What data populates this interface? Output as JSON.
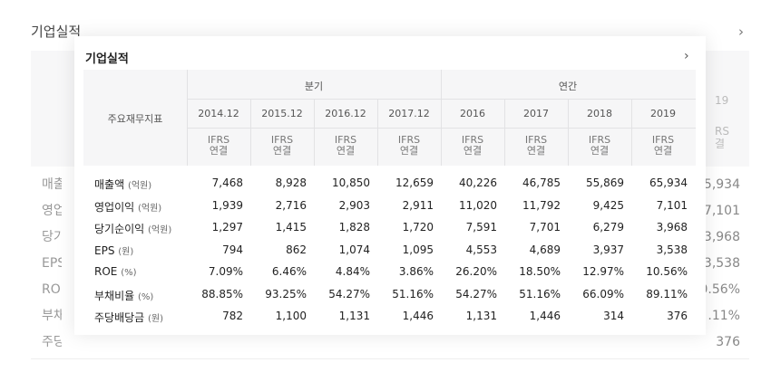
{
  "background": {
    "title": "기업실적",
    "right_year": "19",
    "right_ifrs": "RS",
    "right_yeongyeol": "결",
    "left_labels": [
      "매출",
      "영업",
      "당기",
      "EPS",
      "RO",
      "부채",
      "주당"
    ],
    "right_values": [
      "5,934",
      "7,101",
      "3,968",
      "3,538",
      "0.56%",
      ".11%",
      "376"
    ]
  },
  "popup": {
    "title": "기업실적",
    "row_header": "주요재무지표",
    "groups": [
      "분기",
      "연간"
    ],
    "periods": [
      "2014.12",
      "2015.12",
      "2016.12",
      "2017.12",
      "2016",
      "2017",
      "2018",
      "2019"
    ],
    "basis_top": "IFRS",
    "basis_bottom": "연결",
    "rows": [
      {
        "label": "매출액",
        "unit": "(억원)",
        "values": [
          "7,468",
          "8,928",
          "10,850",
          "12,659",
          "40,226",
          "46,785",
          "55,869",
          "65,934"
        ]
      },
      {
        "label": "영업이익",
        "unit": "(억원)",
        "values": [
          "1,939",
          "2,716",
          "2,903",
          "2,911",
          "11,020",
          "11,792",
          "9,425",
          "7,101"
        ]
      },
      {
        "label": "당기순이익",
        "unit": "(억원)",
        "values": [
          "1,297",
          "1,415",
          "1,828",
          "1,720",
          "7,591",
          "7,701",
          "6,279",
          "3,968"
        ]
      },
      {
        "label": "EPS",
        "unit": "(원)",
        "values": [
          "794",
          "862",
          "1,074",
          "1,095",
          "4,553",
          "4,689",
          "3,937",
          "3,538"
        ]
      },
      {
        "label": "ROE",
        "unit": "(%)",
        "values": [
          "7.09%",
          "6.46%",
          "4.84%",
          "3.86%",
          "26.20%",
          "18.50%",
          "12.97%",
          "10.56%"
        ]
      },
      {
        "label": "부채비율",
        "unit": "(%)",
        "values": [
          "88.85%",
          "93.25%",
          "54.27%",
          "51.16%",
          "54.27%",
          "51.16%",
          "66.09%",
          "89.11%"
        ]
      },
      {
        "label": "주당배당금",
        "unit": "(원)",
        "values": [
          "782",
          "1,100",
          "1,131",
          "1,446",
          "1,131",
          "1,446",
          "314",
          "376"
        ]
      }
    ]
  }
}
